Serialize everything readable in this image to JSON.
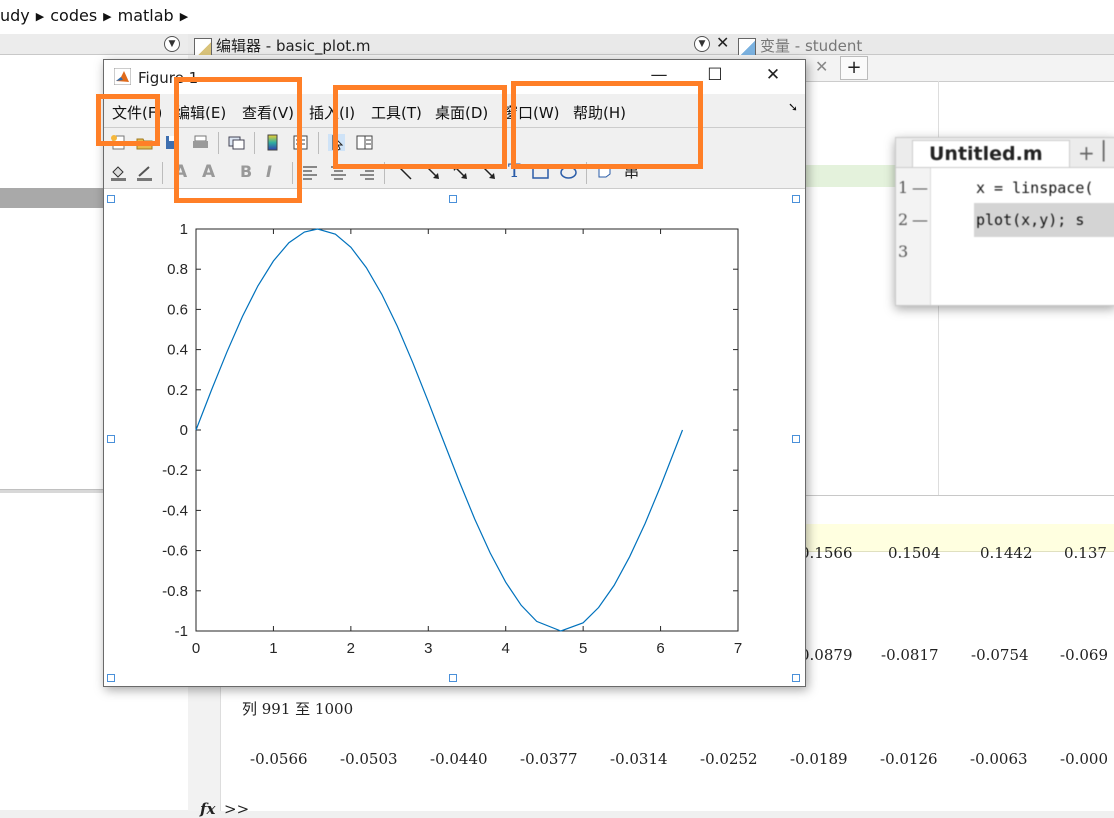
{
  "breadcrumb": {
    "items": [
      "udy",
      "codes",
      "matlab"
    ]
  },
  "editor_tab": {
    "title": "编辑器 - basic_plot.m"
  },
  "variables_tab": {
    "title": "变量 - student"
  },
  "untitled": {
    "tab_title": "Untitled.m",
    "lines": [
      {
        "num": "1",
        "code": "x = linspace("
      },
      {
        "num": "2",
        "code": "plot(x,y);  s"
      },
      {
        "num": "3",
        "code": ""
      }
    ]
  },
  "figure": {
    "title": "Figure 1",
    "menus": [
      "文件(F)",
      "编辑(E)",
      "查看(V)",
      "插入(I)",
      "工具(T)",
      "桌面(D)",
      "窗口(W)",
      "帮助(H)"
    ],
    "toolbar1_icons": [
      "new-figure-icon",
      "open-file-icon",
      "save-icon",
      "print-icon",
      "link-plot-icon",
      "colorbar-icon",
      "legend-icon",
      "edit-plot-arrow-icon",
      "property-inspector-icon"
    ],
    "toolbar2_icons": [
      "fill-color-icon",
      "line-color-icon",
      "font-increase-icon",
      "font-decrease-icon",
      "bold-icon",
      "italic-icon",
      "align-left-icon",
      "align-center-icon",
      "align-right-icon",
      "line-icon",
      "arrow-icon",
      "double-arrow-icon",
      "text-arrow-icon",
      "text-box-icon",
      "rectangle-icon",
      "ellipse-icon",
      "pin-icon",
      "align-distribute-icon"
    ]
  },
  "chart_data": {
    "type": "line",
    "title": "",
    "xlabel": "",
    "ylabel": "",
    "xlim": [
      0,
      7
    ],
    "ylim": [
      -1,
      1
    ],
    "x_ticks": [
      "0",
      "1",
      "2",
      "3",
      "4",
      "5",
      "6",
      "7"
    ],
    "y_ticks": [
      "1",
      "0.8",
      "0.6",
      "0.4",
      "0.2",
      "0",
      "-0.2",
      "-0.4",
      "-0.6",
      "-0.8",
      "-1"
    ],
    "series": [
      {
        "color": "#0072bd",
        "x": [
          0,
          0.2,
          0.4,
          0.6,
          0.8,
          1.0,
          1.2,
          1.4,
          1.5708,
          1.8,
          2.0,
          2.2,
          2.4,
          2.6,
          2.8,
          3.0,
          3.1416,
          3.4,
          3.6,
          3.8,
          4.0,
          4.2,
          4.4,
          4.7124,
          5.0,
          5.2,
          5.4,
          5.6,
          5.8,
          6.0,
          6.2832
        ],
        "y": [
          0,
          0.199,
          0.389,
          0.565,
          0.717,
          0.841,
          0.932,
          0.985,
          1.0,
          0.974,
          0.909,
          0.808,
          0.675,
          0.516,
          0.335,
          0.141,
          0,
          -0.256,
          -0.443,
          -0.612,
          -0.757,
          -0.872,
          -0.952,
          -1.0,
          -0.959,
          -0.883,
          -0.773,
          -0.631,
          -0.465,
          -0.279,
          0
        ]
      }
    ],
    "grid": false,
    "box": true
  },
  "command_window": {
    "row1": [
      "0.1566",
      "0.1504",
      "0.1442",
      "0.137"
    ],
    "row2": [
      "0.0879",
      "-0.0817",
      "-0.0754",
      "-0.069"
    ],
    "header": "列 991 至 1000",
    "row3": [
      "-0.0566",
      "-0.0503",
      "-0.0440",
      "-0.0377",
      "-0.0314",
      "-0.0252",
      "-0.0189",
      "-0.0126",
      "-0.0063",
      "-0.000"
    ],
    "prompt_fx": "fx",
    "prompt": ">>"
  },
  "highlight_color": "#ff7f27"
}
